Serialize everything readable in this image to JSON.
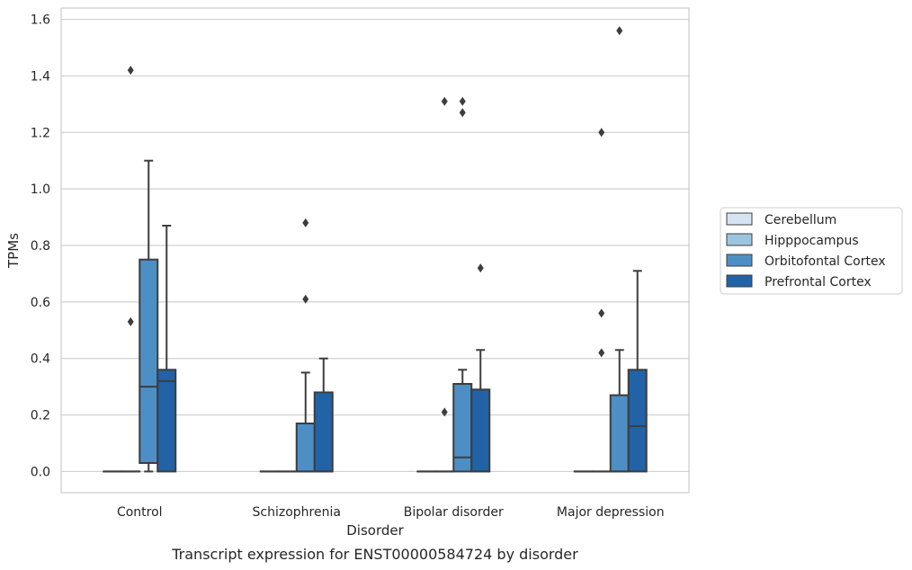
{
  "chart_data": {
    "type": "box",
    "caption": "Transcript expression for ENST00000584724 by disorder",
    "xlabel": "Disorder",
    "ylabel": "TPMs",
    "ylim": [
      -0.075,
      1.64
    ],
    "yticks": [
      "0.0",
      "0.2",
      "0.4",
      "0.6",
      "0.8",
      "1.0",
      "1.2",
      "1.4",
      "1.6"
    ],
    "grid": true,
    "legend_placement": "center-right outside",
    "categories": [
      "Control",
      "Schizophrenia",
      "Bipolar disorder",
      "Major depression"
    ],
    "series": [
      {
        "name": "Cerebellum",
        "color": "#d5e4f2",
        "boxes": [
          {
            "q1": 0,
            "median": 0,
            "q3": 0,
            "whislo": 0,
            "whishi": 0,
            "fliers": []
          },
          {
            "q1": 0,
            "median": 0,
            "q3": 0,
            "whislo": 0,
            "whishi": 0,
            "fliers": []
          },
          {
            "q1": 0,
            "median": 0,
            "q3": 0,
            "whislo": 0,
            "whishi": 0,
            "fliers": []
          },
          {
            "q1": 0,
            "median": 0,
            "q3": 0,
            "whislo": 0,
            "whishi": 0,
            "fliers": []
          }
        ]
      },
      {
        "name": "Hipppocampus",
        "color": "#9dc5e0",
        "boxes": [
          {
            "q1": 0,
            "median": 0,
            "q3": 0,
            "whislo": 0,
            "whishi": 0,
            "fliers": [
              0.53,
              1.42
            ]
          },
          {
            "q1": 0,
            "median": 0,
            "q3": 0,
            "whislo": 0,
            "whishi": 0,
            "fliers": []
          },
          {
            "q1": 0,
            "median": 0,
            "q3": 0,
            "whislo": 0,
            "whishi": 0,
            "fliers": [
              0.21,
              1.31
            ]
          },
          {
            "q1": 0,
            "median": 0,
            "q3": 0,
            "whislo": 0,
            "whishi": 0,
            "fliers": [
              0.42,
              0.56,
              1.2
            ]
          }
        ]
      },
      {
        "name": "Orbitofontal Cortex",
        "color": "#4d8fc4",
        "boxes": [
          {
            "q1": 0.03,
            "median": 0.3,
            "q3": 0.75,
            "whislo": 0,
            "whishi": 1.1,
            "fliers": []
          },
          {
            "q1": 0,
            "median": 0,
            "q3": 0.17,
            "whislo": 0,
            "whishi": 0.35,
            "fliers": [
              0.61,
              0.88
            ]
          },
          {
            "q1": 0,
            "median": 0.05,
            "q3": 0.31,
            "whislo": 0,
            "whishi": 0.36,
            "fliers": [
              1.27,
              1.31
            ]
          },
          {
            "q1": 0,
            "median": 0,
            "q3": 0.27,
            "whislo": 0,
            "whishi": 0.43,
            "fliers": [
              1.56
            ]
          }
        ]
      },
      {
        "name": "Prefrontal Cortex",
        "color": "#2163a6",
        "boxes": [
          {
            "q1": 0,
            "median": 0.32,
            "q3": 0.36,
            "whislo": 0,
            "whishi": 0.87,
            "fliers": []
          },
          {
            "q1": 0,
            "median": 0,
            "q3": 0.28,
            "whislo": 0,
            "whishi": 0.4,
            "fliers": []
          },
          {
            "q1": 0,
            "median": 0,
            "q3": 0.29,
            "whislo": 0,
            "whishi": 0.43,
            "fliers": [
              0.72
            ]
          },
          {
            "q1": 0,
            "median": 0.16,
            "q3": 0.36,
            "whislo": 0,
            "whishi": 0.71,
            "fliers": []
          }
        ]
      }
    ]
  }
}
